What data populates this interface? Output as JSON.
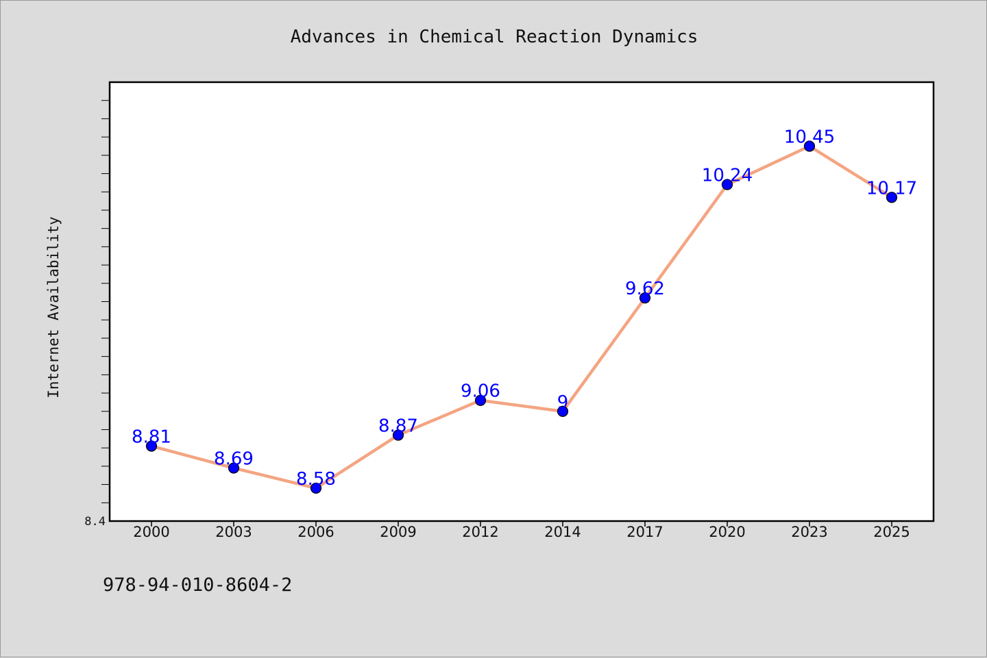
{
  "chart_data": {
    "type": "line",
    "title": "Advances in Chemical Reaction Dynamics",
    "xlabel": "",
    "ylabel": "Internet Availability",
    "categories": [
      "2000",
      "2003",
      "2006",
      "2009",
      "2012",
      "2014",
      "2017",
      "2020",
      "2023",
      "2025"
    ],
    "series": [
      {
        "values": [
          8.81,
          8.69,
          8.58,
          8.87,
          9.06,
          9.0,
          9.62,
          10.24,
          10.45,
          10.17
        ],
        "labels": [
          "8.81",
          "8.69",
          "8.58",
          "8.87",
          "9.06",
          "9",
          "9.62",
          "10.24",
          "10.45",
          "10.17"
        ]
      }
    ],
    "ylim": [
      8.4,
      10.8
    ],
    "ytick_labels": [
      "8.4"
    ],
    "grid": false,
    "legend": "none",
    "colors": {
      "line": "#f4a582",
      "marker": "#0000ff",
      "data_label": "#0000ff",
      "background": "#dcdcdc",
      "plot_background": "#ffffff"
    }
  },
  "footer": {
    "isbn": "978-94-010-8604-2"
  }
}
